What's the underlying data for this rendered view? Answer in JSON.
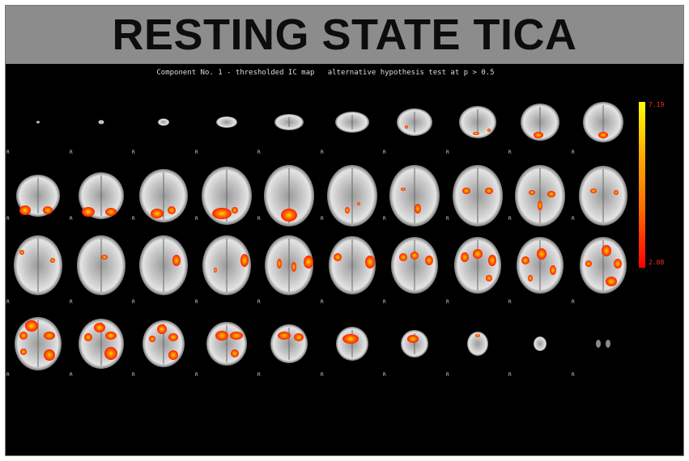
{
  "banner": {
    "title": "RESTING STATE TICA"
  },
  "panel": {
    "subtitle": "Component No. 1 - thresholded IC map   alternative hypothesis test at p > 0.5",
    "orientation_marker": "R",
    "colorbar": {
      "max_label": "7.19",
      "min_label": "2.08",
      "colormap": [
        "#ff0000",
        "#ffff00"
      ]
    }
  },
  "colors": {
    "banner_bg": "#8c8c8c",
    "panel_bg": "#000000",
    "title_text": "#0d0d0d"
  }
}
